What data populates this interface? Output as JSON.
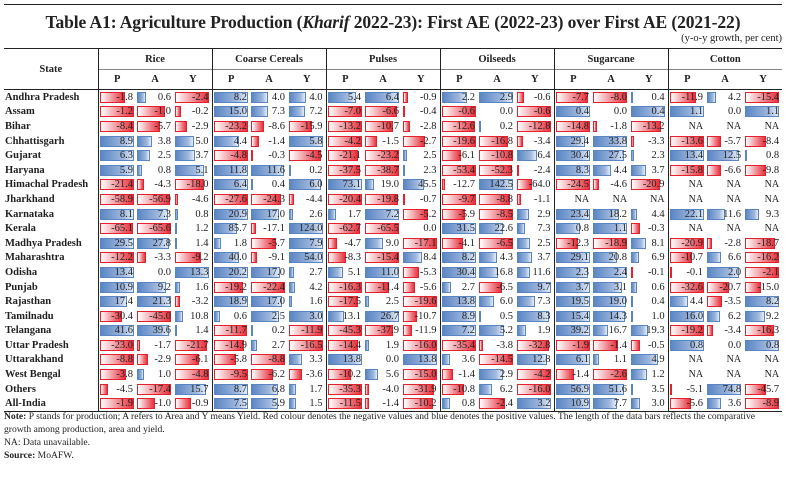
{
  "title_prefix": "Table A1: Agriculture Production (",
  "title_italic": "Kharif",
  "title_suffix": " 2022-23): First AE (2022-23) over First AE (2021-22)",
  "unit": "(y-o-y growth, per cent)",
  "header": {
    "state_label": "State",
    "groups": [
      "Rice",
      "Coarse Cereals",
      "Pulses",
      "Oilseeds",
      "Sugarcane",
      "Cotton"
    ],
    "subcols": [
      "P",
      "A",
      "Y"
    ]
  },
  "colors": {
    "negative": "#e3222d",
    "positive": "#5a85c3"
  },
  "rows": [
    {
      "state": "Andhra Pradesh",
      "values": [
        "-1.8",
        "0.6",
        "-2.4",
        "8.2",
        "4.0",
        "4.0",
        "5.4",
        "6.4",
        "-0.9",
        "2.2",
        "2.9",
        "-0.6",
        "-7.7",
        "-8.0",
        "0.4",
        "-11.9",
        "4.2",
        "-15.4"
      ]
    },
    {
      "state": "Assam",
      "values": [
        "-1.2",
        "-1.0",
        "-0.2",
        "15.0",
        "7.3",
        "7.2",
        "-7.0",
        "-6.6",
        "-0.4",
        "-0.6",
        "0.0",
        "-0.6",
        "0.4",
        "0.0",
        "0.4",
        "1.1",
        "0.0",
        "1.1"
      ]
    },
    {
      "state": "Bihar",
      "values": [
        "-8.4",
        "-5.7",
        "-2.9",
        "-23.2",
        "-8.6",
        "-15.9",
        "-13.2",
        "-10.7",
        "-2.8",
        "-12.6",
        "0.2",
        "-12.8",
        "-14.8",
        "-1.8",
        "-13.2",
        "NA",
        "NA",
        "NA"
      ]
    },
    {
      "state": "Chhattisgarh",
      "values": [
        "8.9",
        "3.8",
        "5.0",
        "4.4",
        "-1.4",
        "5.8",
        "-4.2",
        "-1.5",
        "-2.7",
        "-19.6",
        "-16.8",
        "-3.4",
        "29.4",
        "33.8",
        "-3.3",
        "-13.6",
        "-5.7",
        "-8.4"
      ]
    },
    {
      "state": "Gujarat",
      "values": [
        "6.3",
        "2.5",
        "3.7",
        "-4.8",
        "-0.3",
        "-4.5",
        "-21.1",
        "-23.2",
        "2.5",
        "-6.1",
        "-10.8",
        "6.4",
        "30.4",
        "27.5",
        "2.3",
        "13.4",
        "12.5",
        "0.8"
      ]
    },
    {
      "state": "Haryana",
      "values": [
        "5.9",
        "0.8",
        "5.1",
        "11.8",
        "11.6",
        "0.2",
        "-37.5",
        "-38.7",
        "2.3",
        "-53.4",
        "-52.3",
        "-2.4",
        "8.3",
        "4.4",
        "3.7",
        "-15.8",
        "-6.6",
        "-9.8"
      ]
    },
    {
      "state": "Himachal Pradesh",
      "values": [
        "-21.4",
        "-4.3",
        "-18.0",
        "6.4",
        "0.4",
        "6.0",
        "73.1",
        "19.0",
        "45.5",
        "-12.7",
        "142.5",
        "-64.0",
        "-24.5",
        "-4.6",
        "-20.9",
        "NA",
        "NA",
        "NA"
      ]
    },
    {
      "state": "Jharkhand",
      "values": [
        "-58.9",
        "-56.9",
        "-4.6",
        "-27.6",
        "-24.3",
        "-4.4",
        "-20.4",
        "-19.8",
        "-0.7",
        "-9.7",
        "-8.8",
        "-1.1",
        "NA",
        "NA",
        "NA",
        "NA",
        "NA",
        "NA"
      ]
    },
    {
      "state": "Karnataka",
      "values": [
        "8.1",
        "7.3",
        "0.8",
        "20.9",
        "17.0",
        "2.6",
        "1.7",
        "7.2",
        "-5.2",
        "-5.9",
        "-8.5",
        "2.9",
        "23.4",
        "18.2",
        "4.4",
        "22.1",
        "11.6",
        "9.3"
      ]
    },
    {
      "state": "Kerala",
      "values": [
        "-65.1",
        "-65.6",
        "1.2",
        "85.7",
        "-17.1",
        "124.0",
        "-62.7",
        "-65.5",
        "0.0",
        "31.5",
        "22.6",
        "7.3",
        "0.8",
        "1.1",
        "-0.3",
        "NA",
        "NA",
        "NA"
      ]
    },
    {
      "state": "Madhya Pradesh",
      "values": [
        "29.5",
        "27.8",
        "1.4",
        "1.8",
        "-5.7",
        "7.9",
        "-4.7",
        "9.0",
        "-17.1",
        "-4.1",
        "-6.5",
        "2.5",
        "-12.3",
        "-18.9",
        "8.1",
        "-20.9",
        "-2.8",
        "-18.7"
      ]
    },
    {
      "state": "Maharashtra",
      "values": [
        "-12.2",
        "-3.3",
        "-9.2",
        "40.0",
        "-9.1",
        "54.0",
        "-8.3",
        "-15.4",
        "8.4",
        "8.2",
        "4.3",
        "3.7",
        "29.1",
        "20.8",
        "6.9",
        "-10.7",
        "6.6",
        "-16.2"
      ]
    },
    {
      "state": "Odisha",
      "values": [
        "13.4",
        "0.0",
        "13.3",
        "20.2",
        "17.0",
        "2.7",
        "5.1",
        "11.0",
        "-5.3",
        "30.4",
        "16.8",
        "11.6",
        "2.3",
        "2.4",
        "-0.1",
        "-0.1",
        "2.0",
        "-2.1"
      ]
    },
    {
      "state": "Punjab",
      "values": [
        "10.9",
        "9.2",
        "1.6",
        "-19.2",
        "-22.4",
        "4.2",
        "-16.3",
        "-11.4",
        "-5.6",
        "2.7",
        "-6.5",
        "9.7",
        "3.7",
        "3.1",
        "0.6",
        "-32.6",
        "-20.7",
        "-15.0"
      ]
    },
    {
      "state": "Rajasthan",
      "values": [
        "17.4",
        "21.3",
        "-3.2",
        "18.9",
        "17.0",
        "1.6",
        "-17.5",
        "2.5",
        "-19.6",
        "13.8",
        "6.0",
        "7.3",
        "19.5",
        "19.0",
        "0.4",
        "4.4",
        "-3.5",
        "8.2"
      ]
    },
    {
      "state": "Tamilnadu",
      "values": [
        "-30.4",
        "-45.0",
        "10.8",
        "0.6",
        "2.5",
        "3.0",
        "13.1",
        "26.7",
        "-10.7",
        "8.9",
        "0.5",
        "8.3",
        "15.4",
        "14.3",
        "1.0",
        "16.0",
        "6.2",
        "9.2"
      ]
    },
    {
      "state": "Telangana",
      "values": [
        "41.6",
        "39.6",
        "1.4",
        "-11.7",
        "0.2",
        "-11.9",
        "-45.3",
        "-37.9",
        "-11.9",
        "7.2",
        "5.2",
        "1.9",
        "39.2",
        "16.7",
        "19.3",
        "-19.2",
        "-3.4",
        "-16.3"
      ]
    },
    {
      "state": "Uttar Pradesh",
      "values": [
        "-23.0",
        "-1.7",
        "-21.7",
        "-14.9",
        "2.7",
        "-16.5",
        "-14.4",
        "1.9",
        "-16.0",
        "-35.4",
        "-3.8",
        "-32.8",
        "-1.9",
        "-1.4",
        "-0.5",
        "0.8",
        "0.0",
        "0.8"
      ]
    },
    {
      "state": "Uttarakhand",
      "values": [
        "-8.8",
        "-2.9",
        "-6.1",
        "-5.8",
        "-8.8",
        "3.3",
        "13.8",
        "0.0",
        "13.8",
        "3.6",
        "-14.5",
        "12.8",
        "6.1",
        "1.1",
        "4.9",
        "NA",
        "NA",
        "NA"
      ]
    },
    {
      "state": "West Bengal",
      "values": [
        "-3.8",
        "1.0",
        "-4.8",
        "-9.5",
        "-6.2",
        "-3.6",
        "-10.2",
        "5.6",
        "-15.0",
        "-1.4",
        "2.9",
        "-4.2",
        "-1.4",
        "-2.6",
        "1.2",
        "NA",
        "NA",
        "NA"
      ]
    },
    {
      "state": "Others",
      "values": [
        "-4.5",
        "-17.4",
        "15.7",
        "8.7",
        "6.8",
        "1.7",
        "-35.3",
        "-4.0",
        "-31.9",
        "-10.8",
        "6.2",
        "-16.0",
        "56.9",
        "51.6",
        "3.5",
        "-5.1",
        "74.8",
        "-45.7"
      ]
    },
    {
      "state": "All-India",
      "values": [
        "-1.9",
        "-1.0",
        "-0.9",
        "7.5",
        "5.9",
        "1.5",
        "-11.5",
        "-1.4",
        "-10.2",
        "0.8",
        "-2.4",
        "3.2",
        "10.9",
        "7.7",
        "3.0",
        "-5.6",
        "3.6",
        "-8.9"
      ]
    }
  ],
  "notes": {
    "note_label": "Note:",
    "note_text": " P stands for production; A refers to Area and Y means Yield. Red colour denotes the negative values and blue denotes the positive values. The length of the data bars reflects the comparative growth among production, area and yield.",
    "na_text": "NA: Data unavailable.",
    "source_label": "Source:",
    "source_text": " MoAFW."
  }
}
